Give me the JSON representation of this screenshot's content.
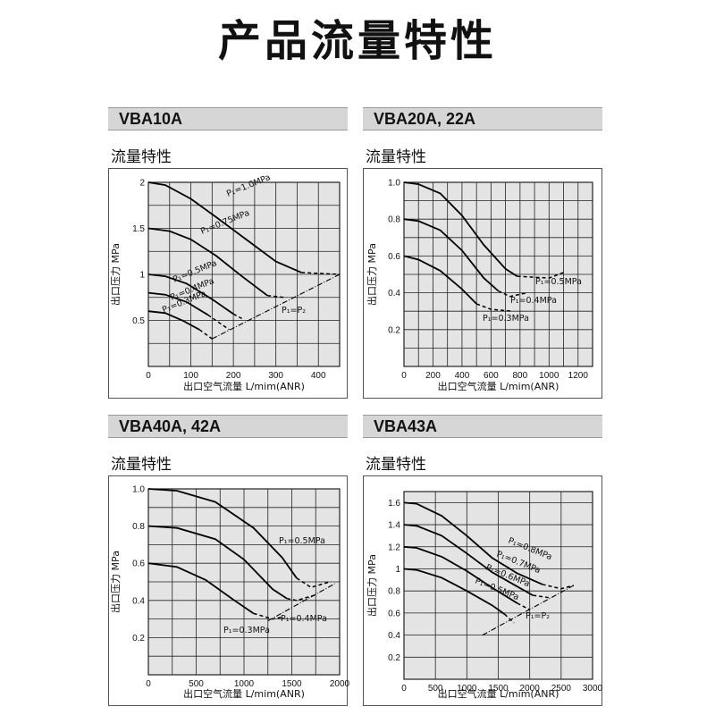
{
  "page": {
    "title": "产品流量特性",
    "sections": [
      {
        "header": "VBA10A",
        "subtitle": "流量特性"
      },
      {
        "header": "VBA20A, 22A",
        "subtitle": "流量特性"
      },
      {
        "header": "VBA40A, 42A",
        "subtitle": "流量特性"
      },
      {
        "header": "VBA43A",
        "subtitle": "流量特性"
      }
    ]
  },
  "chart_data": [
    {
      "type": "line",
      "title": "VBA10A",
      "xlabel": "出口空气流量 L/mim(ANR)",
      "ylabel": "出口压力 MPa",
      "xlim": [
        0,
        450
      ],
      "ylim": [
        0,
        2
      ],
      "xticks": [
        0,
        100,
        200,
        300,
        400
      ],
      "xtick_labels": [
        "0",
        "100",
        "200",
        "300",
        "400"
      ],
      "yticks": [
        0.5,
        1,
        1.5,
        2
      ],
      "ytick_labels": [
        "0.5",
        "1",
        "1.5",
        "2"
      ],
      "grid": true,
      "series": [
        {
          "name": "P₁=1.0MPa",
          "solid": [
            [
              0,
              2.0
            ],
            [
              40,
              1.97
            ],
            [
              100,
              1.82
            ],
            [
              160,
              1.62
            ],
            [
              230,
              1.38
            ],
            [
              300,
              1.14
            ],
            [
              360,
              1.02
            ]
          ],
          "dashed": [
            [
              360,
              1.02
            ],
            [
              450,
              1.0
            ]
          ]
        },
        {
          "name": "P₁=0.75MPa",
          "solid": [
            [
              0,
              1.5
            ],
            [
              50,
              1.47
            ],
            [
              100,
              1.38
            ],
            [
              160,
              1.2
            ],
            [
              220,
              0.98
            ],
            [
              280,
              0.77
            ]
          ],
          "dashed": [
            [
              280,
              0.77
            ],
            [
              320,
              0.75
            ]
          ]
        },
        {
          "name": "P₁=0.5MPa",
          "solid": [
            [
              0,
              1.0
            ],
            [
              40,
              0.98
            ],
            [
              90,
              0.9
            ],
            [
              150,
              0.73
            ],
            [
              200,
              0.57
            ]
          ],
          "dashed": [
            [
              200,
              0.57
            ],
            [
              220,
              0.52
            ]
          ]
        },
        {
          "name": "P₁=0.4MPa",
          "solid": [
            [
              0,
              0.8
            ],
            [
              40,
              0.78
            ],
            [
              90,
              0.7
            ],
            [
              140,
              0.56
            ]
          ],
          "dashed": [
            [
              140,
              0.56
            ],
            [
              190,
              0.4
            ]
          ]
        },
        {
          "name": "P₁=0.3MPa",
          "solid": [
            [
              0,
              0.6
            ],
            [
              40,
              0.58
            ],
            [
              80,
              0.5
            ],
            [
              120,
              0.4
            ]
          ],
          "dashed": [
            [
              120,
              0.4
            ],
            [
              150,
              0.3
            ]
          ]
        }
      ],
      "reference_line": {
        "name": "P₁=P₂",
        "points": [
          [
            150,
            0.3
          ],
          [
            450,
            1.0
          ]
        ]
      }
    },
    {
      "type": "line",
      "title": "VBA20A, 22A",
      "xlabel": "出口空气流量 L/mim(ANR)",
      "ylabel": "出口压力 MPa",
      "xlim": [
        0,
        1300
      ],
      "ylim": [
        0,
        1.0
      ],
      "xticks": [
        0,
        200,
        400,
        600,
        800,
        1000,
        1200
      ],
      "xtick_labels": [
        "0",
        "200",
        "400",
        "600",
        "800",
        "1000",
        "1200"
      ],
      "yticks": [
        0.2,
        0.4,
        0.6,
        0.8,
        1.0
      ],
      "ytick_labels": [
        "0.2",
        "0.4",
        "0.6",
        "0.8",
        "1.0"
      ],
      "grid": true,
      "series": [
        {
          "name": "P₁=0.5MPa",
          "solid": [
            [
              0,
              1.0
            ],
            [
              100,
              0.99
            ],
            [
              250,
              0.94
            ],
            [
              400,
              0.82
            ],
            [
              550,
              0.66
            ],
            [
              700,
              0.53
            ],
            [
              780,
              0.49
            ]
          ],
          "dashed": [
            [
              780,
              0.49
            ],
            [
              1000,
              0.48
            ],
            [
              1100,
              0.51
            ]
          ]
        },
        {
          "name": "P₁=0.4MPa",
          "solid": [
            [
              0,
              0.8
            ],
            [
              100,
              0.79
            ],
            [
              250,
              0.74
            ],
            [
              400,
              0.63
            ],
            [
              550,
              0.48
            ],
            [
              650,
              0.41
            ]
          ],
          "dashed": [
            [
              650,
              0.41
            ],
            [
              730,
              0.38
            ],
            [
              850,
              0.4
            ]
          ]
        },
        {
          "name": "P₁=0.3MPa",
          "solid": [
            [
              0,
              0.6
            ],
            [
              100,
              0.58
            ],
            [
              250,
              0.52
            ],
            [
              400,
              0.42
            ],
            [
              500,
              0.34
            ]
          ],
          "dashed": [
            [
              500,
              0.34
            ],
            [
              600,
              0.31
            ],
            [
              750,
              0.3
            ]
          ]
        }
      ]
    },
    {
      "type": "line",
      "title": "VBA40A, 42A",
      "xlabel": "出口空气流量 L/mim(ANR)",
      "ylabel": "出口压力 MPa",
      "xlim": [
        0,
        2000
      ],
      "ylim": [
        0,
        1.0
      ],
      "xticks": [
        0,
        500,
        1000,
        1500,
        2000
      ],
      "xtick_labels": [
        "0",
        "500",
        "1000",
        "1500",
        "2000"
      ],
      "yticks": [
        0.2,
        0.4,
        0.6,
        0.8,
        1.0
      ],
      "ytick_labels": [
        "0.2",
        "0.4",
        "0.6",
        "0.8",
        "1.0"
      ],
      "grid": true,
      "series": [
        {
          "name": "P₁=0.5MPa",
          "solid": [
            [
              0,
              1.0
            ],
            [
              300,
              0.99
            ],
            [
              700,
              0.93
            ],
            [
              1100,
              0.79
            ],
            [
              1400,
              0.63
            ],
            [
              1550,
              0.52
            ]
          ],
          "dashed": [
            [
              1550,
              0.52
            ],
            [
              1700,
              0.47
            ],
            [
              1900,
              0.5
            ]
          ]
        },
        {
          "name": "P₁=0.4MPa",
          "solid": [
            [
              0,
              0.8
            ],
            [
              300,
              0.79
            ],
            [
              700,
              0.73
            ],
            [
              1000,
              0.62
            ],
            [
              1300,
              0.46
            ],
            [
              1450,
              0.41
            ]
          ],
          "dashed": [
            [
              1450,
              0.41
            ],
            [
              1550,
              0.4
            ],
            [
              1750,
              0.43
            ]
          ]
        },
        {
          "name": "P₁=0.3MPa",
          "solid": [
            [
              0,
              0.6
            ],
            [
              300,
              0.58
            ],
            [
              600,
              0.51
            ],
            [
              900,
              0.4
            ],
            [
              1100,
              0.33
            ]
          ],
          "dashed": [
            [
              1100,
              0.33
            ],
            [
              1300,
              0.3
            ],
            [
              1400,
              0.31
            ]
          ]
        }
      ],
      "reference_line": {
        "name": "",
        "points": [
          [
            1250,
            0.29
          ],
          [
            1950,
            0.49
          ]
        ]
      }
    },
    {
      "type": "line",
      "title": "VBA43A",
      "xlabel": "出口空气流量 L/mim(ANR)",
      "ylabel": "出口压力 MPa",
      "xlim": [
        0,
        3000
      ],
      "ylim": [
        0,
        1.7
      ],
      "xticks": [
        0,
        500,
        1000,
        1500,
        2000,
        2500,
        3000
      ],
      "xtick_labels": [
        "0",
        "500",
        "1000",
        "1500",
        "2000",
        "2500",
        "3000"
      ],
      "yticks": [
        0.2,
        0.4,
        0.6,
        0.8,
        1,
        1.2,
        1.4,
        1.6
      ],
      "ytick_labels": [
        "0.2",
        "0.4",
        "0.6",
        "0.8",
        "1",
        "1.2",
        "1.4",
        "1.6"
      ],
      "grid": true,
      "series": [
        {
          "name": "P₁=0.8MPa",
          "solid": [
            [
              0,
              1.6
            ],
            [
              200,
              1.59
            ],
            [
              600,
              1.48
            ],
            [
              1000,
              1.3
            ],
            [
              1400,
              1.1
            ],
            [
              1800,
              0.96
            ],
            [
              2200,
              0.86
            ]
          ],
          "dashed": [
            [
              2200,
              0.86
            ],
            [
              2500,
              0.82
            ],
            [
              2700,
              0.85
            ]
          ]
        },
        {
          "name": "P₁=0.7MPa",
          "solid": [
            [
              0,
              1.4
            ],
            [
              200,
              1.39
            ],
            [
              600,
              1.3
            ],
            [
              1000,
              1.14
            ],
            [
              1400,
              0.97
            ],
            [
              1800,
              0.84
            ],
            [
              2050,
              0.76
            ]
          ],
          "dashed": [
            [
              2050,
              0.76
            ],
            [
              2300,
              0.74
            ]
          ]
        },
        {
          "name": "P₁=0.6MPa",
          "solid": [
            [
              0,
              1.2
            ],
            [
              200,
              1.19
            ],
            [
              600,
              1.11
            ],
            [
              1000,
              0.98
            ],
            [
              1400,
              0.83
            ],
            [
              1800,
              0.69
            ]
          ],
          "dashed": [
            [
              1800,
              0.69
            ],
            [
              2000,
              0.63
            ]
          ]
        },
        {
          "name": "P₁=0.5MPa",
          "solid": [
            [
              0,
              1.0
            ],
            [
              200,
              0.99
            ],
            [
              600,
              0.92
            ],
            [
              1000,
              0.8
            ],
            [
              1400,
              0.67
            ],
            [
              1600,
              0.59
            ]
          ],
          "dashed": [
            [
              1600,
              0.59
            ],
            [
              1750,
              0.51
            ]
          ]
        }
      ],
      "reference_line": {
        "name": "P₁=P₂",
        "points": [
          [
            1250,
            0.4
          ],
          [
            2700,
            0.85
          ]
        ]
      }
    }
  ]
}
